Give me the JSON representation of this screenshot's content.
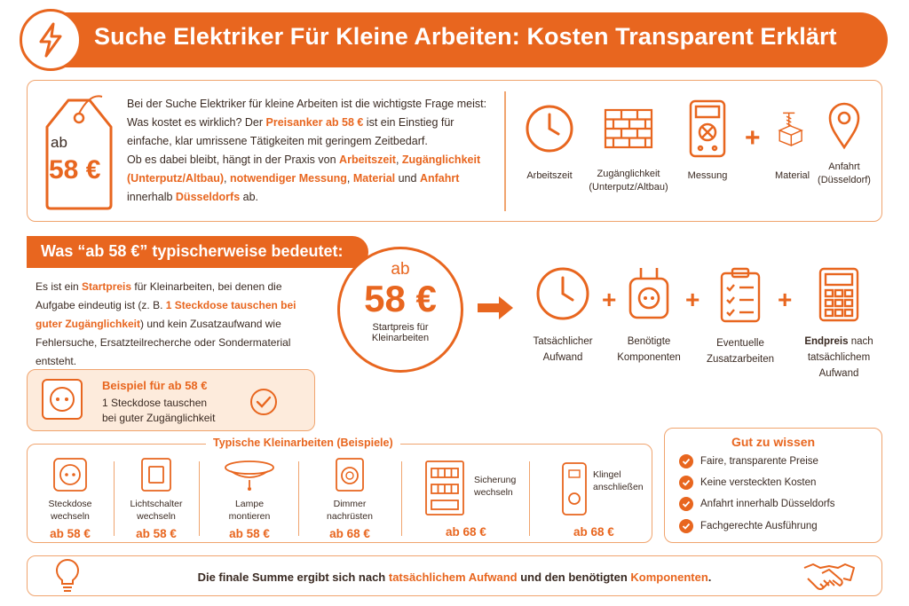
{
  "header": {
    "title": "Suche Elektriker Für Kleine Arbeiten: Kosten Transparent Erklärt",
    "icon": "lightning-icon"
  },
  "intro": {
    "tag": {
      "prefix": "ab",
      "price": "58 €"
    },
    "text": [
      {
        "t": "Bei der Suche Elektriker für kleine Arbeiten ist die wichtigste Frage meist: Was kostet es wirklich? Der ",
        "o": false
      },
      {
        "t": "Preisanker ab 58 €",
        "o": true
      },
      {
        "t": " ist ein Einstieg für einfache, klar umrissene Tätigkeiten mit geringem Zeitbedarf.",
        "o": false
      }
    ],
    "text2": [
      {
        "t": "Ob es dabei bleibt, hängt in der Praxis von ",
        "o": false
      },
      {
        "t": "Arbeitszeit",
        "o": true
      },
      {
        "t": ", ",
        "o": false
      },
      {
        "t": "Zugänglichkeit (Unterputz/Altbau)",
        "o": true
      },
      {
        "t": ", ",
        "o": false
      },
      {
        "t": "notwendiger Messung",
        "o": true
      },
      {
        "t": ", ",
        "o": false
      },
      {
        "t": "Material",
        "o": true
      },
      {
        "t": " und ",
        "o": false
      },
      {
        "t": "Anfahrt",
        "o": true
      },
      {
        "t": " innerhalb ",
        "o": false
      },
      {
        "t": "Düsseldorfs",
        "o": true
      },
      {
        "t": " ab.",
        "o": false
      }
    ],
    "factors": [
      {
        "label": "Arbeitszeit",
        "icon": "clock-icon"
      },
      {
        "label": "Zugänglichkeit\n(Unterputz/Altbau)",
        "icon": "brick-wall-icon"
      },
      {
        "label": "Messung",
        "icon": "multimeter-icon"
      },
      {
        "label": "Material",
        "icon": "material-box-icon"
      },
      {
        "label": "Anfahrt\n(Düsseldorf)",
        "icon": "location-pin-icon"
      }
    ]
  },
  "was": {
    "title": "Was “ab 58 €” typischerweise bedeutet:",
    "text": [
      {
        "t": "Es ist ein ",
        "o": false
      },
      {
        "t": "Startpreis",
        "o": true
      },
      {
        "t": " für Kleinarbeiten, bei denen die Aufgabe eindeutig ist (z. B. ",
        "o": false
      },
      {
        "t": "1 Steckdose tauschen bei guter Zugänglichkeit",
        "o": true
      },
      {
        "t": ") und kein Zusatzaufwand wie Fehlersuche, Ersatzteilrecherche oder Sondermaterial entsteht.",
        "o": false
      }
    ],
    "example": {
      "title": "Beispiel für ab 58 €",
      "line1": "1 Steckdose tauschen",
      "line2": "bei guter Zugänglichkeit"
    },
    "circle": {
      "prefix": "ab",
      "price": "58 €",
      "caption1": "Startpreis für",
      "caption2": "Kleinarbeiten"
    },
    "process": [
      {
        "line1": "Tatsächlicher",
        "line2": "Aufwand",
        "line3": "",
        "icon": "clock-icon"
      },
      {
        "line1": "Benötigte",
        "line2": "Komponenten",
        "line3": "",
        "icon": "socket-plug-icon"
      },
      {
        "line1": "Eventuelle",
        "line2": "Zusatzarbeiten",
        "line3": "",
        "icon": "checklist-icon"
      },
      {
        "line1": "Endpreis",
        "line1b": " nach",
        "line2": "tatsächlichem",
        "line3": "Aufwand",
        "icon": "calculator-icon"
      }
    ]
  },
  "typical": {
    "title": "Typische Kleinarbeiten (Beispiele)",
    "tasks": [
      {
        "line1": "Steckdose",
        "line2": "wechseln",
        "price": "ab 58 €",
        "icon": "socket-icon"
      },
      {
        "line1": "Lichtschalter",
        "line2": "wechseln",
        "price": "ab 58 €",
        "icon": "light-switch-icon"
      },
      {
        "line1": "Lampe",
        "line2": "montieren",
        "price": "ab 58 €",
        "icon": "ceiling-lamp-icon"
      },
      {
        "line1": "Dimmer",
        "line2": "nachrüsten",
        "price": "ab 68 €",
        "icon": "dimmer-icon"
      },
      {
        "line1": "Sicherung",
        "line2": "wechseln",
        "price": "ab 68 €",
        "icon": "fuse-box-icon"
      },
      {
        "line1": "Klingel",
        "line2": "anschließen",
        "price": "ab 68 €",
        "icon": "doorbell-icon"
      }
    ]
  },
  "gut": {
    "title": "Gut zu wissen",
    "items": [
      "Faire, transparente Preise",
      "Keine versteckten Kosten",
      "Anfahrt innerhalb Düsseldorfs",
      "Fachgerechte Ausführung"
    ]
  },
  "footer": {
    "parts": [
      {
        "t": "Die finale Summe ergibt sich nach ",
        "o": false
      },
      {
        "t": "tatsächlichem Aufwand",
        "o": true
      },
      {
        "t": " und den benötigten ",
        "o": false
      },
      {
        "t": "Komponenten",
        "o": true
      },
      {
        "t": ".",
        "o": false
      }
    ]
  },
  "colors": {
    "accent": "#e8661f",
    "text": "#3a2a22"
  }
}
